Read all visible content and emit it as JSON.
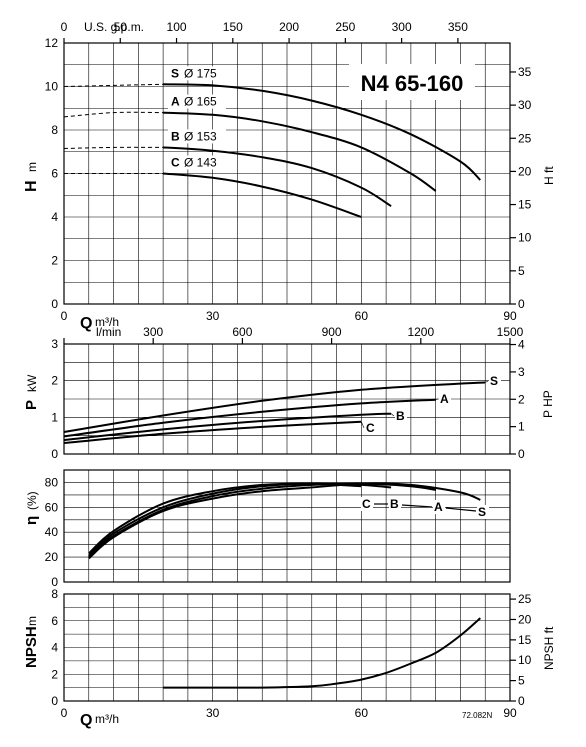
{
  "model_title": "N4 65-160",
  "figure_code": "72.082N",
  "chart_data": [
    {
      "type": "line",
      "id": "head",
      "ylabel_main": "H",
      "ylabel_unit": "m",
      "ylabel_right": "H ft",
      "top_axis_label": "U.S. g.p.m.",
      "top_ticks": [
        "0",
        "50",
        "100",
        "150",
        "200",
        "250",
        "300",
        "350"
      ],
      "xlabel_main": "Q",
      "xlabel_unit": "m³/h",
      "x_ticks": [
        "0",
        "30",
        "60",
        "90"
      ],
      "y_ticks": [
        "0",
        "2",
        "4",
        "6",
        "8",
        "10",
        "12"
      ],
      "right_ticks": [
        "0",
        "5",
        "10",
        "15",
        "20",
        "25",
        "30",
        "35"
      ],
      "xlim": [
        0,
        90
      ],
      "ylim": [
        0,
        12
      ],
      "series": [
        {
          "letter": "S",
          "diameter": "Ø 175",
          "x": [
            0,
            10,
            20,
            30,
            40,
            50,
            60,
            70,
            80,
            84
          ],
          "y": [
            10.0,
            10.05,
            10.1,
            10.05,
            9.8,
            9.35,
            8.7,
            7.8,
            6.55,
            5.7
          ],
          "dashed_until": 20
        },
        {
          "letter": "A",
          "diameter": "Ø 165",
          "x": [
            0,
            10,
            20,
            30,
            40,
            50,
            60,
            70,
            75
          ],
          "y": [
            8.6,
            8.8,
            8.8,
            8.7,
            8.4,
            7.9,
            7.2,
            6.0,
            5.2
          ],
          "dashed_until": 20
        },
        {
          "letter": "B",
          "diameter": "Ø 153",
          "x": [
            0,
            10,
            20,
            30,
            40,
            50,
            60,
            66
          ],
          "y": [
            7.15,
            7.2,
            7.2,
            7.05,
            6.75,
            6.25,
            5.35,
            4.5
          ],
          "dashed_until": 20
        },
        {
          "letter": "C",
          "diameter": "Ø 143",
          "x": [
            0,
            10,
            20,
            30,
            40,
            50,
            60
          ],
          "y": [
            6.0,
            6.0,
            6.0,
            5.8,
            5.4,
            4.8,
            4.0
          ],
          "dashed_until": 20
        }
      ]
    },
    {
      "type": "line",
      "id": "power",
      "ylabel_main": "P",
      "ylabel_unit": "kW",
      "ylabel_right": "P HP",
      "top_axis_label": "l/min",
      "top_ticks": [
        "0",
        "300",
        "600",
        "900",
        "1200",
        "1500"
      ],
      "y_ticks": [
        "0",
        "1",
        "2",
        "3"
      ],
      "right_ticks": [
        "0",
        "1",
        "2",
        "3",
        "4"
      ],
      "xlim": [
        0,
        90
      ],
      "ylim": [
        0,
        3
      ],
      "series": [
        {
          "letter": "S",
          "x": [
            0,
            20,
            40,
            60,
            80,
            85
          ],
          "y": [
            0.6,
            1.05,
            1.45,
            1.75,
            1.92,
            1.95
          ]
        },
        {
          "letter": "A",
          "x": [
            0,
            20,
            40,
            60,
            75
          ],
          "y": [
            0.48,
            0.85,
            1.15,
            1.38,
            1.48
          ]
        },
        {
          "letter": "B",
          "x": [
            0,
            20,
            40,
            60,
            66
          ],
          "y": [
            0.38,
            0.67,
            0.9,
            1.07,
            1.1
          ]
        },
        {
          "letter": "C",
          "x": [
            0,
            20,
            40,
            60
          ],
          "y": [
            0.3,
            0.55,
            0.74,
            0.88
          ]
        }
      ]
    },
    {
      "type": "line",
      "id": "efficiency",
      "ylabel_main": "η",
      "ylabel_unit": "(%)",
      "y_ticks": [
        "0",
        "20",
        "40",
        "60",
        "80"
      ],
      "xlim": [
        0,
        90
      ],
      "ylim": [
        0,
        90
      ],
      "series": [
        {
          "letter": "S",
          "x": [
            5,
            10,
            20,
            30,
            40,
            50,
            60,
            70,
            80,
            84
          ],
          "y": [
            19,
            36,
            57,
            67,
            73,
            76,
            79,
            78,
            72,
            66
          ]
        },
        {
          "letter": "A",
          "x": [
            5,
            10,
            20,
            30,
            40,
            50,
            60,
            70,
            75
          ],
          "y": [
            20,
            37,
            58,
            69,
            75,
            78,
            79,
            77,
            74
          ]
        },
        {
          "letter": "B",
          "x": [
            5,
            10,
            20,
            30,
            40,
            50,
            60,
            66
          ],
          "y": [
            21,
            39,
            60,
            71,
            77,
            79,
            78,
            76
          ]
        },
        {
          "letter": "C",
          "x": [
            5,
            10,
            20,
            30,
            40,
            50,
            60
          ],
          "y": [
            23,
            41,
            63,
            73,
            78,
            79,
            77
          ]
        }
      ]
    },
    {
      "type": "line",
      "id": "npsh",
      "ylabel_main": "NPSH",
      "ylabel_unit": "m",
      "ylabel_right": "NPSH ft",
      "xlabel_main": "Q",
      "xlabel_unit": "m³/h",
      "x_ticks": [
        "0",
        "30",
        "60",
        "90"
      ],
      "y_ticks": [
        "0",
        "2",
        "4",
        "6",
        "8"
      ],
      "right_ticks": [
        "0",
        "5",
        "10",
        "15",
        "20",
        "25"
      ],
      "xlim": [
        0,
        90
      ],
      "ylim": [
        0,
        8
      ],
      "series": [
        {
          "letter": "",
          "x": [
            20,
            30,
            40,
            50,
            55,
            60,
            65,
            70,
            75,
            80,
            84
          ],
          "y": [
            1.0,
            1.0,
            1.0,
            1.1,
            1.3,
            1.6,
            2.1,
            2.8,
            3.6,
            4.9,
            6.2
          ]
        }
      ]
    }
  ]
}
